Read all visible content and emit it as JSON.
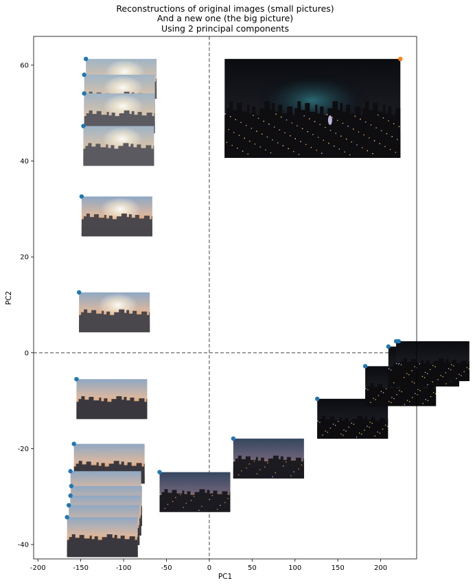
{
  "chart_data": {
    "type": "scatter",
    "title_lines": [
      "Reconstructions of original images (small pictures)",
      "And a new one (the big picture)",
      "Using 2 principal components"
    ],
    "xlabel": "PC1",
    "ylabel": "PC2",
    "xlim": [
      -205,
      242
    ],
    "ylim": [
      -43,
      66
    ],
    "xticks": [
      -200,
      -150,
      -100,
      -50,
      0,
      50,
      100,
      150,
      200
    ],
    "yticks": [
      -40,
      -20,
      0,
      20,
      40,
      60
    ],
    "reference_lines": {
      "x": 0,
      "y": 0,
      "style": "dashed",
      "color": "#808080"
    },
    "series": [
      {
        "color": "#1f77b4",
        "points": [
          [
            -144,
            61.3
          ],
          [
            -146,
            58.0
          ],
          [
            -146,
            54.1
          ],
          [
            -147,
            47.3
          ],
          [
            -149,
            32.6
          ],
          [
            -152,
            12.6
          ],
          [
            -155,
            -5.5
          ],
          [
            -158,
            -19.0
          ],
          [
            -162,
            -24.7
          ],
          [
            -161,
            -27.8
          ],
          [
            -162,
            -29.8
          ],
          [
            -164,
            -31.8
          ],
          [
            -166,
            -34.3
          ],
          [
            -58,
            -24.9
          ],
          [
            28,
            -17.9
          ],
          [
            126,
            -9.6
          ],
          [
            182,
            -2.8
          ],
          [
            209,
            1.3
          ],
          [
            218,
            2.4
          ],
          [
            221,
            2.4
          ]
        ],
        "thumbnail": "sunset"
      },
      {
        "color": "#ff7f0e",
        "points": [
          [
            223,
            61.3
          ]
        ],
        "thumbnail": "night-big"
      }
    ]
  }
}
